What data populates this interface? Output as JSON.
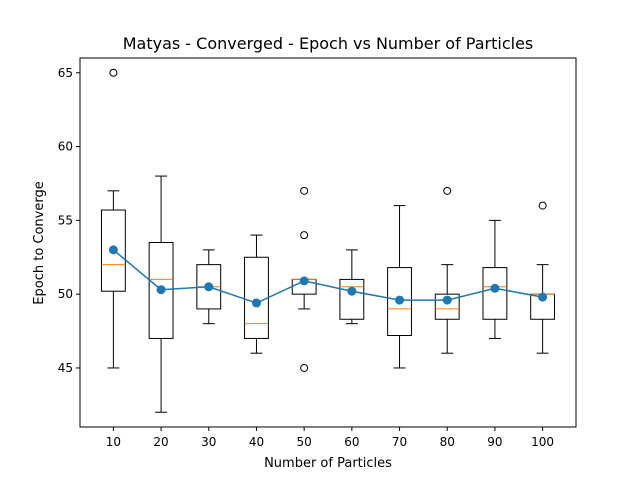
{
  "chart_data": {
    "type": "box",
    "title": "Matyas - Converged - Epoch vs Number of Particles",
    "xlabel": "Number of Particles",
    "ylabel": "Epoch to Converge",
    "categories": [
      "10",
      "20",
      "30",
      "40",
      "50",
      "60",
      "70",
      "80",
      "90",
      "100"
    ],
    "ylim": [
      41,
      66
    ],
    "yticks": [
      45,
      50,
      55,
      60,
      65
    ],
    "grid": false,
    "boxes": [
      {
        "category": "10",
        "whislo": 45,
        "q1": 50.2,
        "med": 52,
        "q3": 55.7,
        "whishi": 57,
        "fliers": [
          65
        ]
      },
      {
        "category": "20",
        "whislo": 42,
        "q1": 47,
        "med": 51,
        "q3": 53.5,
        "whishi": 58,
        "fliers": []
      },
      {
        "category": "30",
        "whislo": 48,
        "q1": 49,
        "med": 50.5,
        "q3": 52,
        "whishi": 53,
        "fliers": []
      },
      {
        "category": "40",
        "whislo": 46,
        "q1": 47,
        "med": 48,
        "q3": 52.5,
        "whishi": 54,
        "fliers": []
      },
      {
        "category": "50",
        "whislo": 49,
        "q1": 50,
        "med": 51,
        "q3": 51,
        "whishi": 51,
        "fliers": [
          57,
          54,
          45
        ]
      },
      {
        "category": "60",
        "whislo": 48,
        "q1": 48.3,
        "med": 50.5,
        "q3": 51,
        "whishi": 53,
        "fliers": []
      },
      {
        "category": "70",
        "whislo": 45,
        "q1": 47.2,
        "med": 49,
        "q3": 51.8,
        "whishi": 56,
        "fliers": []
      },
      {
        "category": "80",
        "whislo": 46,
        "q1": 48.3,
        "med": 49,
        "q3": 50,
        "whishi": 52,
        "fliers": [
          57
        ]
      },
      {
        "category": "90",
        "whislo": 47,
        "q1": 48.3,
        "med": 50.5,
        "q3": 51.8,
        "whishi": 55,
        "fliers": []
      },
      {
        "category": "100",
        "whislo": 46,
        "q1": 48.3,
        "med": 50,
        "q3": 50,
        "whishi": 52,
        "fliers": [
          56
        ]
      }
    ],
    "mean_series": {
      "values": [
        53.0,
        50.3,
        50.5,
        49.4,
        50.9,
        50.2,
        49.6,
        49.6,
        50.4,
        49.8
      ],
      "color": "#1f77b4"
    },
    "colors": {
      "box": "#000000",
      "median": "#ff7f0e",
      "mean": "#1f77b4",
      "flier": "#000000"
    }
  }
}
